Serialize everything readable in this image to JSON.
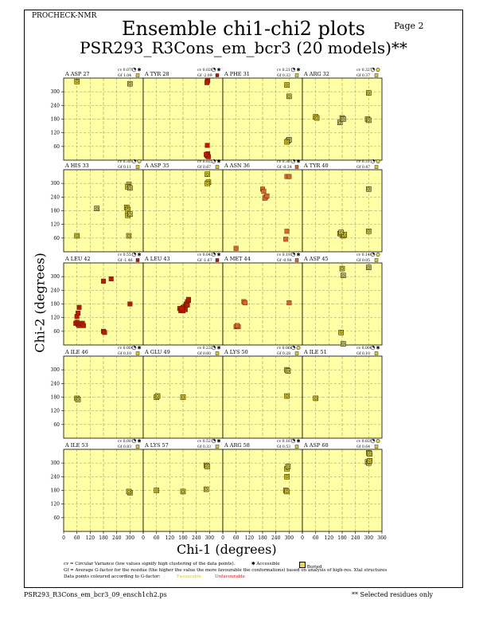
{
  "header": {
    "program": "PROCHECK-NMR",
    "page": "Page  2",
    "title": "Ensemble chi1-chi2 plots",
    "subtitle": "PSR293_R3Cons_em_bcr3 (20 models)**"
  },
  "axes": {
    "ylabel": "Chi-2 (degrees)",
    "xlabel": "Chi-1 (degrees)",
    "xticks": [
      "0",
      "60",
      "120",
      "180",
      "240",
      "300",
      "360"
    ],
    "yticks": [
      "60",
      "120",
      "180",
      "240",
      "300"
    ],
    "xlim": [
      0,
      360
    ],
    "ylim": [
      0,
      360
    ]
  },
  "colors": {
    "panel_bg": "#ffffa6",
    "grid": "#9a9a6a",
    "favourable": "#e8d84a",
    "intermediate": "#cf6a2a",
    "unfavourable": "#b81c00",
    "dot_fill": "#d7c83a"
  },
  "legend": {
    "line1": "cv = Circular Variance (low values signify high clustering of the data points).",
    "accessible": "Accessible",
    "buried": "Buried",
    "line2": "Gf = Average G-factor for the residue (the higher the value the more favourable the conformations) based on analysis of high-res. Xtal structures",
    "line3": "Data points coloured according to G-factor:",
    "favourable": "Favourable",
    "unfavourable": "Unfavourable"
  },
  "footer": {
    "filename": "PSR293_R3Cons_em_bcr3_09_ensch1ch2.ps",
    "note": "** Selected residues only"
  },
  "chart_data": {
    "type": "scatter",
    "xlabel": "Chi-1 (degrees)",
    "ylabel": "Chi-2 (degrees)",
    "panels": [
      {
        "label": "A ASP 27",
        "cv": "cv 0.079",
        "gf": "Gf  1.04",
        "access": "A",
        "gfclass": "fav",
        "points": [
          [
            60,
            345
          ],
          [
            300,
            335
          ]
        ]
      },
      {
        "label": "A TYR 28",
        "cv": "cv 0.020",
        "gf": "Gf -2.09",
        "access": "A",
        "gfclass": "unfav",
        "points": [
          [
            290,
            345
          ],
          [
            292,
            350
          ],
          [
            288,
            340
          ],
          [
            290,
            65
          ],
          [
            292,
            28
          ],
          [
            288,
            22
          ],
          [
            290,
            18
          ],
          [
            295,
            15
          ],
          [
            285,
            25
          ]
        ]
      },
      {
        "label": "A PHE 31",
        "cv": "cv 0.211",
        "gf": "Gf  0.33",
        "access": "A",
        "gfclass": "fav",
        "points": [
          [
            290,
            330
          ],
          [
            300,
            280
          ],
          [
            295,
            85
          ],
          [
            300,
            90
          ],
          [
            290,
            80
          ]
        ]
      },
      {
        "label": "A ARG 32",
        "cv": "cv 0.327",
        "gf": "Gf  0.37",
        "access": "B",
        "gfclass": "fav",
        "points": [
          [
            60,
            190
          ],
          [
            65,
            185
          ],
          [
            170,
            165
          ],
          [
            180,
            185
          ],
          [
            185,
            180
          ],
          [
            295,
            180
          ],
          [
            300,
            175
          ],
          [
            300,
            295
          ]
        ]
      },
      {
        "label": "A HIS 33",
        "cv": "cv 0.303",
        "gf": "Gf  0.11",
        "access": "B",
        "gfclass": "fav",
        "points": [
          [
            60,
            70
          ],
          [
            150,
            190
          ],
          [
            285,
            195
          ],
          [
            290,
            185
          ],
          [
            295,
            295
          ],
          [
            290,
            285
          ],
          [
            290,
            160
          ],
          [
            300,
            165
          ],
          [
            295,
            70
          ],
          [
            300,
            280
          ]
        ]
      },
      {
        "label": "A ASP 35",
        "cv": "cv 0.025",
        "gf": "Gf  0.67",
        "access": "A",
        "gfclass": "fav",
        "points": [
          [
            290,
            340
          ],
          [
            295,
            305
          ],
          [
            290,
            300
          ]
        ]
      },
      {
        "label": "A ASN 36",
        "cv": "cv 0.367",
        "gf": "Gf -0.34",
        "access": "A",
        "gfclass": "mid",
        "points": [
          [
            60,
            15
          ],
          [
            180,
            275
          ],
          [
            185,
            265
          ],
          [
            195,
            240
          ],
          [
            190,
            235
          ],
          [
            200,
            245
          ],
          [
            285,
            55
          ],
          [
            290,
            90
          ],
          [
            290,
            330
          ],
          [
            300,
            330
          ]
        ]
      },
      {
        "label": "A TYR 40",
        "cv": "cv 0.311",
        "gf": "Gf  0.47",
        "access": "B",
        "gfclass": "fav",
        "points": [
          [
            170,
            80
          ],
          [
            180,
            75
          ],
          [
            185,
            70
          ],
          [
            190,
            75
          ],
          [
            175,
            85
          ],
          [
            300,
            275
          ],
          [
            300,
            90
          ]
        ]
      },
      {
        "label": "A LEU 42",
        "cv": "cv 0.551",
        "gf": "Gf -1.46",
        "access": "A",
        "gfclass": "unfav",
        "points": [
          [
            55,
            95
          ],
          [
            60,
            100
          ],
          [
            65,
            90
          ],
          [
            70,
            85
          ],
          [
            75,
            95
          ],
          [
            60,
            125
          ],
          [
            65,
            140
          ],
          [
            70,
            165
          ],
          [
            85,
            95
          ],
          [
            90,
            85
          ],
          [
            180,
            60
          ],
          [
            185,
            55
          ],
          [
            180,
            280
          ],
          [
            215,
            290
          ],
          [
            300,
            180
          ]
        ]
      },
      {
        "label": "A LEU 43",
        "cv": "cv 0.043",
        "gf": "Gf -1.67",
        "access": "A",
        "gfclass": "unfav",
        "points": [
          [
            165,
            160
          ],
          [
            170,
            150
          ],
          [
            175,
            155
          ],
          [
            180,
            150
          ],
          [
            185,
            165
          ],
          [
            190,
            170
          ],
          [
            195,
            180
          ],
          [
            200,
            190
          ],
          [
            205,
            195
          ],
          [
            190,
            155
          ],
          [
            180,
            165
          ],
          [
            195,
            175
          ],
          [
            200,
            175
          ],
          [
            205,
            200
          ],
          [
            175,
            160
          ]
        ]
      },
      {
        "label": "A MET 44",
        "cv": "cv 0.193",
        "gf": "Gf -0.98",
        "access": "A",
        "gfclass": "mid",
        "points": [
          [
            60,
            80
          ],
          [
            65,
            82
          ],
          [
            70,
            80
          ],
          [
            65,
            85
          ],
          [
            95,
            190
          ],
          [
            100,
            185
          ],
          [
            300,
            185
          ]
        ]
      },
      {
        "label": "A ASP 45",
        "cv": "cv 0.140",
        "gf": "Gf  0.05",
        "access": "B",
        "gfclass": "fav",
        "points": [
          [
            180,
            335
          ],
          [
            185,
            305
          ],
          [
            175,
            55
          ],
          [
            185,
            5
          ],
          [
            300,
            340
          ]
        ]
      },
      {
        "label": "A ILE 46",
        "cv": "cv 0.000",
        "gf": "Gf  0.10",
        "access": "A",
        "gfclass": "fav",
        "points": [
          [
            60,
            175
          ],
          [
            65,
            170
          ]
        ]
      },
      {
        "label": "A GLU 49",
        "cv": "cv 0.232",
        "gf": "Gf  0.60",
        "access": "A",
        "gfclass": "fav",
        "points": [
          [
            60,
            180
          ],
          [
            65,
            185
          ],
          [
            180,
            180
          ]
        ]
      },
      {
        "label": "A LYS 50",
        "cv": "cv 0.066",
        "gf": "Gf  0.28",
        "access": "B",
        "gfclass": "fav",
        "points": [
          [
            290,
            300
          ],
          [
            295,
            295
          ],
          [
            290,
            185
          ]
        ]
      },
      {
        "label": "A ILE 51",
        "cv": "cv 0.000",
        "gf": "Gf  0.10",
        "access": "A",
        "gfclass": "fav",
        "points": [
          [
            60,
            175
          ]
        ]
      },
      {
        "label": "A ILE 53",
        "cv": "cv 0.001",
        "gf": "Gf  0.83",
        "access": "A",
        "gfclass": "fav",
        "points": [
          [
            300,
            170
          ],
          [
            295,
            175
          ]
        ]
      },
      {
        "label": "A LYS 57",
        "cv": "cv 0.521",
        "gf": "Gf  0.33",
        "access": "A",
        "gfclass": "fav",
        "points": [
          [
            60,
            180
          ],
          [
            180,
            175
          ],
          [
            285,
            290
          ],
          [
            290,
            285
          ],
          [
            285,
            185
          ]
        ]
      },
      {
        "label": "A ARG 58",
        "cv": "cv 0.167",
        "gf": "Gf  0.53",
        "access": "A",
        "gfclass": "fav",
        "points": [
          [
            290,
            275
          ],
          [
            295,
            285
          ],
          [
            290,
            240
          ],
          [
            285,
            180
          ],
          [
            290,
            175
          ]
        ]
      },
      {
        "label": "A ASP 60",
        "cv": "cv 0.029",
        "gf": "Gf  0.64",
        "access": "B",
        "gfclass": "fav",
        "points": [
          [
            300,
            345
          ],
          [
            305,
            340
          ],
          [
            295,
            305
          ],
          [
            300,
            300
          ],
          [
            305,
            310
          ]
        ]
      }
    ]
  }
}
